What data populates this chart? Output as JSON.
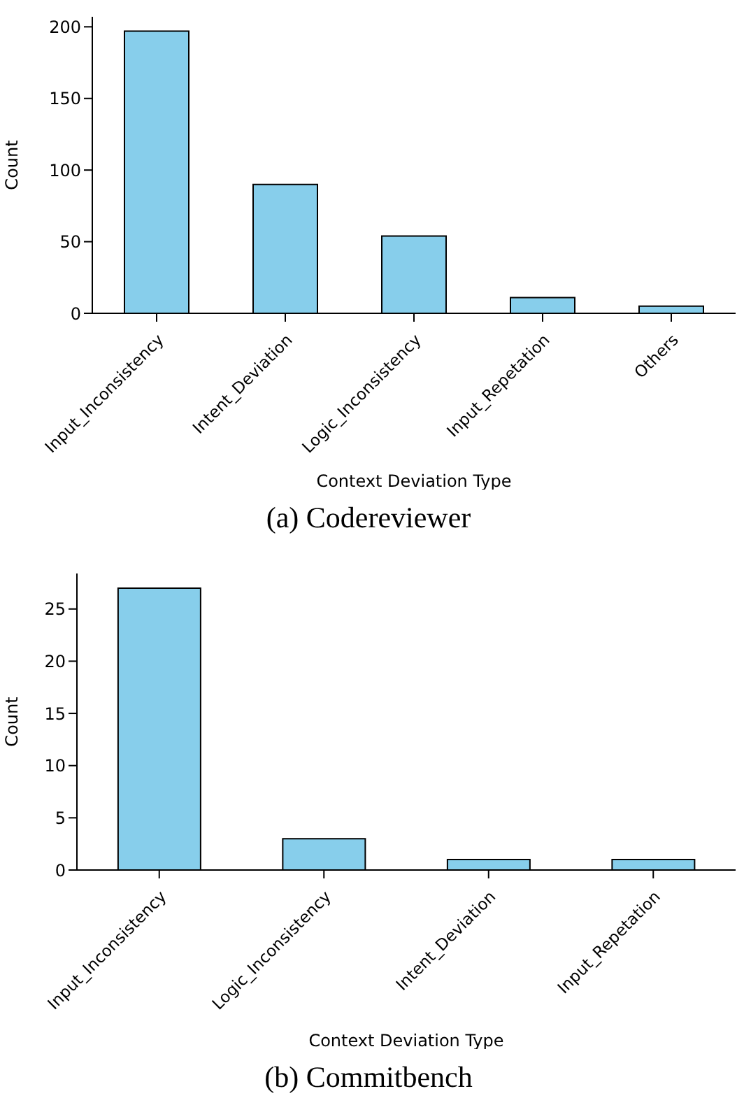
{
  "chart_data": [
    {
      "type": "bar",
      "title": "(a) Codereviewer",
      "xlabel": "Context Deviation Type",
      "ylabel": "Count",
      "categories": [
        "Input_Inconsistency",
        "Intent_Deviation",
        "Logic_Inconsistency",
        "Input_Repetation",
        "Others"
      ],
      "values": [
        197,
        90,
        54,
        11,
        5
      ],
      "color": "#87ceeb",
      "ylim": [
        0,
        207
      ],
      "yticks": [
        0,
        50,
        100,
        150,
        200
      ],
      "grid": false,
      "legend": false
    },
    {
      "type": "bar",
      "title": "(b) Commitbench",
      "xlabel": "Context Deviation Type",
      "ylabel": "Count",
      "categories": [
        "Input_Inconsistency",
        "Logic_Inconsistency",
        "Intent_Deviation",
        "Input_Repetation"
      ],
      "values": [
        27,
        3,
        1,
        1
      ],
      "color": "#87ceeb",
      "ylim": [
        0,
        28.4
      ],
      "yticks": [
        0,
        5,
        10,
        15,
        20,
        25
      ],
      "grid": false,
      "legend": false
    }
  ]
}
